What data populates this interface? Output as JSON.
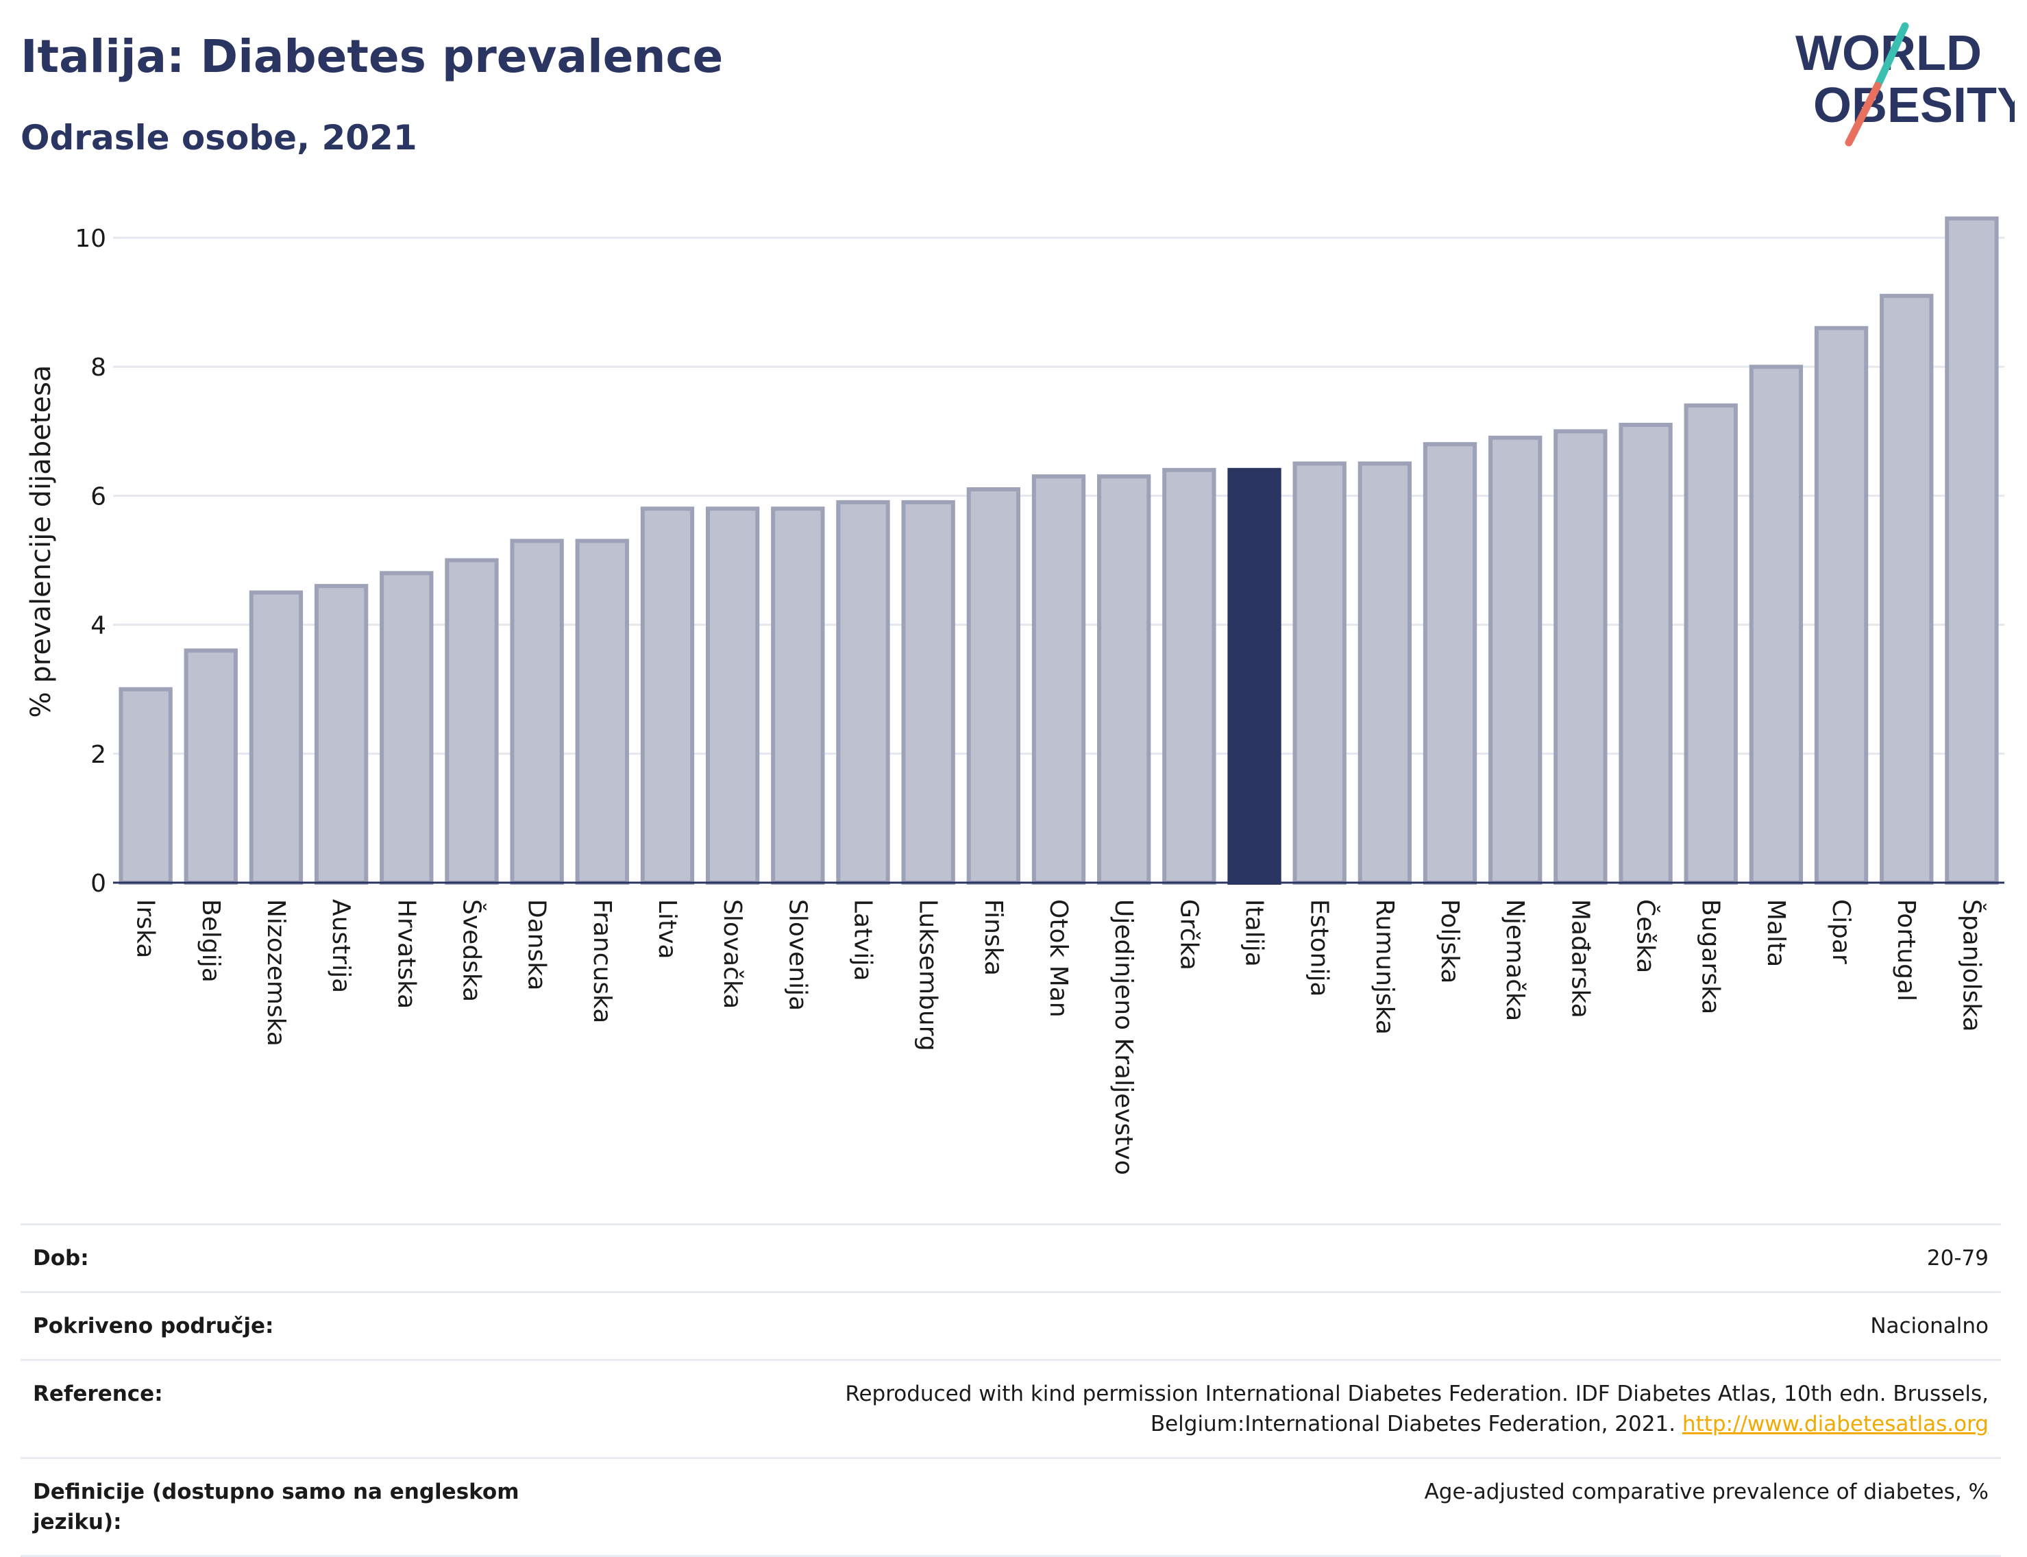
{
  "header": {
    "title": "Italija: Diabetes prevalence",
    "subtitle": "Odrasle osobe, 2021"
  },
  "logo": {
    "line1": "WORLD",
    "line2": "OBESITY",
    "colors": {
      "text": "#2b3562",
      "slash_top": "#3bbfb0",
      "slash_bottom": "#e8705f"
    }
  },
  "chart_data": {
    "type": "bar",
    "title": "",
    "xlabel": "",
    "ylabel": "% prevalencije dijabetesa",
    "ylim": [
      0,
      10.5
    ],
    "yticks": [
      0,
      2,
      4,
      6,
      8,
      10
    ],
    "grid": true,
    "highlight": "Italija",
    "colors": {
      "bar": "#bec1cf",
      "bar_edge": "#9ea2b8",
      "highlight": "#2b3562",
      "grid": "#e5e7ee",
      "axis": "#2b3562"
    },
    "categories": [
      "Irska",
      "Belgija",
      "Nizozemska",
      "Austrija",
      "Hrvatska",
      "Švedska",
      "Danska",
      "Francuska",
      "Litva",
      "Slovačka",
      "Slovenija",
      "Latvija",
      "Luksemburg",
      "Finska",
      "Otok Man",
      "Ujedinjeno Kraljevstvo",
      "Grčka",
      "Italija",
      "Estonija",
      "Rumunjska",
      "Poljska",
      "Njemačka",
      "Mađarska",
      "Češka",
      "Bugarska",
      "Malta",
      "Cipar",
      "Portugal",
      "Španjolska"
    ],
    "values": [
      3.0,
      3.6,
      4.5,
      4.6,
      4.8,
      5.0,
      5.3,
      5.3,
      5.8,
      5.8,
      5.8,
      5.9,
      5.9,
      6.1,
      6.3,
      6.3,
      6.4,
      6.4,
      6.5,
      6.5,
      6.8,
      6.9,
      7.0,
      7.1,
      7.4,
      8.0,
      8.6,
      9.1,
      10.3
    ]
  },
  "meta": {
    "rows": [
      {
        "label": "Dob:",
        "value": "20-79"
      },
      {
        "label": "Pokriveno područje:",
        "value": "Nacionalno"
      },
      {
        "label": "Reference:",
        "value": "Reproduced with kind permission International Diabetes Federation.  IDF Diabetes Atlas, 10th edn. Brussels, Belgium:International Diabetes Federation, 2021.",
        "link": "http://www.diabetesatlas.org"
      },
      {
        "label": "Definicije (dostupno samo na engleskom jeziku):",
        "value": "Age-adjusted comparative prevalence of diabetes, %"
      }
    ]
  }
}
